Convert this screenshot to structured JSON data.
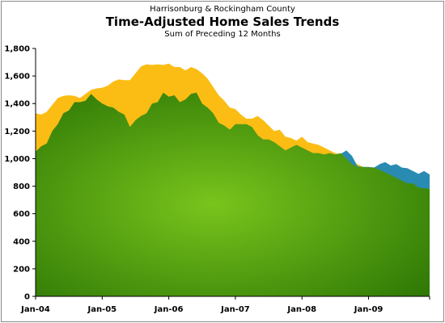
{
  "chart_data": {
    "type": "area",
    "supertitle": "Harrisonburg & Rockingham County",
    "title": "Time-Adjusted Home Sales Trends",
    "subtitle": "Sum of Preceding 12 Months",
    "xlabel": "",
    "ylabel": "",
    "ylim": [
      0,
      1800
    ],
    "yticks": [
      0,
      200,
      400,
      600,
      800,
      1000,
      1200,
      1400,
      1600,
      1800
    ],
    "yticklabels": [
      "0",
      "200",
      "400",
      "600",
      "800",
      "1,000",
      "1,200",
      "1,400",
      "1,600",
      "1,800"
    ],
    "xticklabels": [
      "Jan-04",
      "Jan-05",
      "Jan-06",
      "Jan-07",
      "Jan-08",
      "Jan-09"
    ],
    "x_start": "Jan-04",
    "x_end": "Dec-09",
    "grid": false,
    "legend": "none",
    "colors": {
      "back": "#fbbd14",
      "front": "#2e7806",
      "front_light": "#79c41c",
      "overlap": "#2a8bb2"
    },
    "series": [
      {
        "color": "#fbbd14",
        "values": [
          1330,
          1320,
          1340,
          1390,
          1440,
          1455,
          1460,
          1455,
          1440,
          1470,
          1500,
          1510,
          1515,
          1530,
          1560,
          1575,
          1570,
          1570,
          1620,
          1670,
          1685,
          1680,
          1685,
          1680,
          1690,
          1665,
          1665,
          1640,
          1665,
          1650,
          1620,
          1580,
          1520,
          1460,
          1420,
          1370,
          1360,
          1320,
          1290,
          1290,
          1310,
          1280,
          1240,
          1200,
          1210,
          1160,
          1150,
          1130,
          1160,
          1120,
          1110,
          1100,
          1080,
          1060,
          1040,
          1030,
          1010,
          980,
          960,
          940,
          940,
          935,
          950,
          945,
          940,
          920,
          895,
          870,
          860,
          830,
          815,
          790
        ]
      },
      {
        "color": "#2e7806",
        "values": [
          1050,
          1090,
          1110,
          1200,
          1250,
          1330,
          1350,
          1410,
          1410,
          1420,
          1470,
          1430,
          1400,
          1380,
          1370,
          1340,
          1320,
          1230,
          1280,
          1310,
          1330,
          1400,
          1410,
          1480,
          1450,
          1460,
          1410,
          1430,
          1470,
          1480,
          1400,
          1370,
          1330,
          1260,
          1240,
          1210,
          1250,
          1250,
          1250,
          1230,
          1170,
          1140,
          1140,
          1120,
          1090,
          1060,
          1080,
          1100,
          1080,
          1060,
          1040,
          1040,
          1030,
          1040,
          1030,
          1040,
          1000,
          960,
          940,
          940,
          935,
          935,
          920,
          900,
          880,
          860,
          840,
          820,
          820,
          790,
          785,
          780
        ]
      },
      {
        "color": "#2a8bb2",
        "values": [
          null,
          null,
          null,
          null,
          null,
          null,
          null,
          null,
          null,
          null,
          null,
          null,
          null,
          null,
          null,
          null,
          null,
          null,
          null,
          null,
          null,
          null,
          null,
          null,
          null,
          null,
          null,
          null,
          null,
          null,
          null,
          null,
          null,
          null,
          null,
          null,
          null,
          null,
          null,
          null,
          null,
          null,
          null,
          null,
          null,
          null,
          null,
          null,
          null,
          null,
          null,
          null,
          null,
          null,
          null,
          1035,
          1060,
          1020,
          945,
          940,
          940,
          935,
          960,
          975,
          950,
          960,
          935,
          930,
          910,
          890,
          910,
          885
        ]
      }
    ]
  }
}
